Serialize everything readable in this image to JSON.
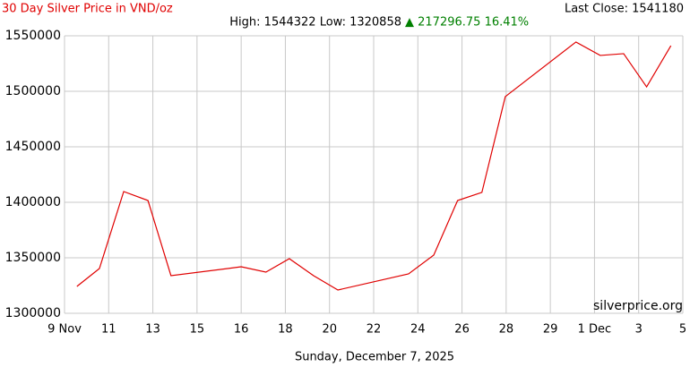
{
  "chart_data": {
    "type": "line",
    "title": "30 Day Silver Price in VND/oz",
    "high_low": "High: 1544322 Low: 1320858",
    "change": "▲ 217296.75 16.41%",
    "last_close": "Last Close: 1541180",
    "watermark": "silverprice.org",
    "x_label": "Sunday, December 7, 2025",
    "xlim": [
      0,
      14
    ],
    "xticks": [
      {
        "value": 0,
        "label": "9 Nov"
      },
      {
        "value": 1,
        "label": "11"
      },
      {
        "value": 2,
        "label": "13"
      },
      {
        "value": 3,
        "label": "15"
      },
      {
        "value": 4,
        "label": "16"
      },
      {
        "value": 5,
        "label": "18"
      },
      {
        "value": 6,
        "label": "20"
      },
      {
        "value": 7,
        "label": "22"
      },
      {
        "value": 8,
        "label": "24"
      },
      {
        "value": 9,
        "label": "26"
      },
      {
        "value": 10,
        "label": "28"
      },
      {
        "value": 11,
        "label": "29"
      },
      {
        "value": 12,
        "label": "1 Dec"
      },
      {
        "value": 13,
        "label": "3"
      },
      {
        "value": 14,
        "label": "5"
      }
    ],
    "ylim": [
      1300000,
      1550000
    ],
    "yticks": [
      1300000,
      1350000,
      1400000,
      1450000,
      1500000,
      1550000
    ],
    "grid": true,
    "x": [
      0.28,
      0.79,
      1.34,
      1.89,
      2.41,
      4.0,
      4.56,
      5.09,
      5.64,
      6.19,
      7.79,
      8.36,
      8.9,
      9.45,
      9.98,
      11.58,
      12.13,
      12.66,
      13.18,
      13.73
    ],
    "series": [
      {
        "name": "Silver price",
        "color": "#e00000",
        "values": [
          1324200,
          1340300,
          1409700,
          1401600,
          1333900,
          1341900,
          1337100,
          1349200,
          1333900,
          1321000,
          1335500,
          1352400,
          1401600,
          1408900,
          1495200,
          1544400,
          1532300,
          1533900,
          1504000,
          1541100
        ]
      }
    ]
  }
}
